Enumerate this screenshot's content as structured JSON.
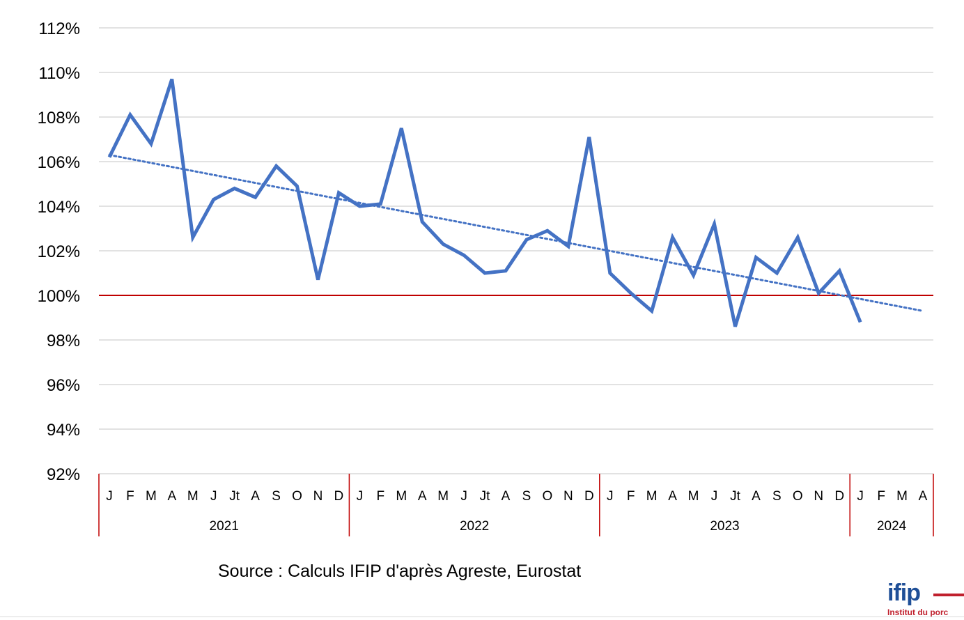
{
  "chart_data": {
    "type": "line",
    "title": "",
    "xlabel": "",
    "ylabel": "",
    "ylim": [
      92,
      112
    ],
    "yticks": [
      "92%",
      "94%",
      "96%",
      "98%",
      "100%",
      "102%",
      "104%",
      "106%",
      "108%",
      "110%",
      "112%"
    ],
    "grid": true,
    "month_labels": [
      "J",
      "F",
      "M",
      "A",
      "M",
      "J",
      "Jt",
      "A",
      "S",
      "O",
      "N",
      "D",
      "J",
      "F",
      "M",
      "A",
      "M",
      "J",
      "Jt",
      "A",
      "S",
      "O",
      "N",
      "D",
      "J",
      "F",
      "M",
      "A",
      "M",
      "J",
      "Jt",
      "A",
      "S",
      "O",
      "N",
      "D",
      "J",
      "F",
      "M",
      "A"
    ],
    "year_groups": [
      {
        "label": "2021",
        "months": 12
      },
      {
        "label": "2022",
        "months": 12
      },
      {
        "label": "2023",
        "months": 12
      },
      {
        "label": "2024",
        "months": 4
      }
    ],
    "series": [
      {
        "values": [
          106.2,
          108.1,
          106.8,
          109.7,
          102.6,
          104.3,
          104.8,
          104.4,
          105.8,
          104.9,
          100.7,
          104.6,
          104.0,
          104.1,
          107.5,
          103.3,
          102.3,
          101.8,
          101.0,
          101.1,
          102.5,
          102.9,
          102.2,
          107.1,
          101.0,
          100.1,
          99.3,
          102.6,
          100.9,
          103.2,
          98.6,
          101.7,
          101.0,
          102.6,
          100.1,
          101.1,
          98.8
        ],
        "color": "#4472c4"
      }
    ],
    "trendline": {
      "style": "dotted",
      "color": "#4472c4",
      "start": 106.3,
      "end": 99.3
    },
    "reference_line": {
      "value": 100,
      "color": "#c00000"
    }
  },
  "source_text": "Source : Calculs IFIP d'après Agreste, Eurostat",
  "logo": {
    "word": "ifip",
    "tagline": "Institut du porc",
    "brand_color": "#1f4f97",
    "accent_color": "#c0202d"
  },
  "colors": {
    "grid": "#d9d9d9",
    "axis_separator": "#c00000"
  }
}
